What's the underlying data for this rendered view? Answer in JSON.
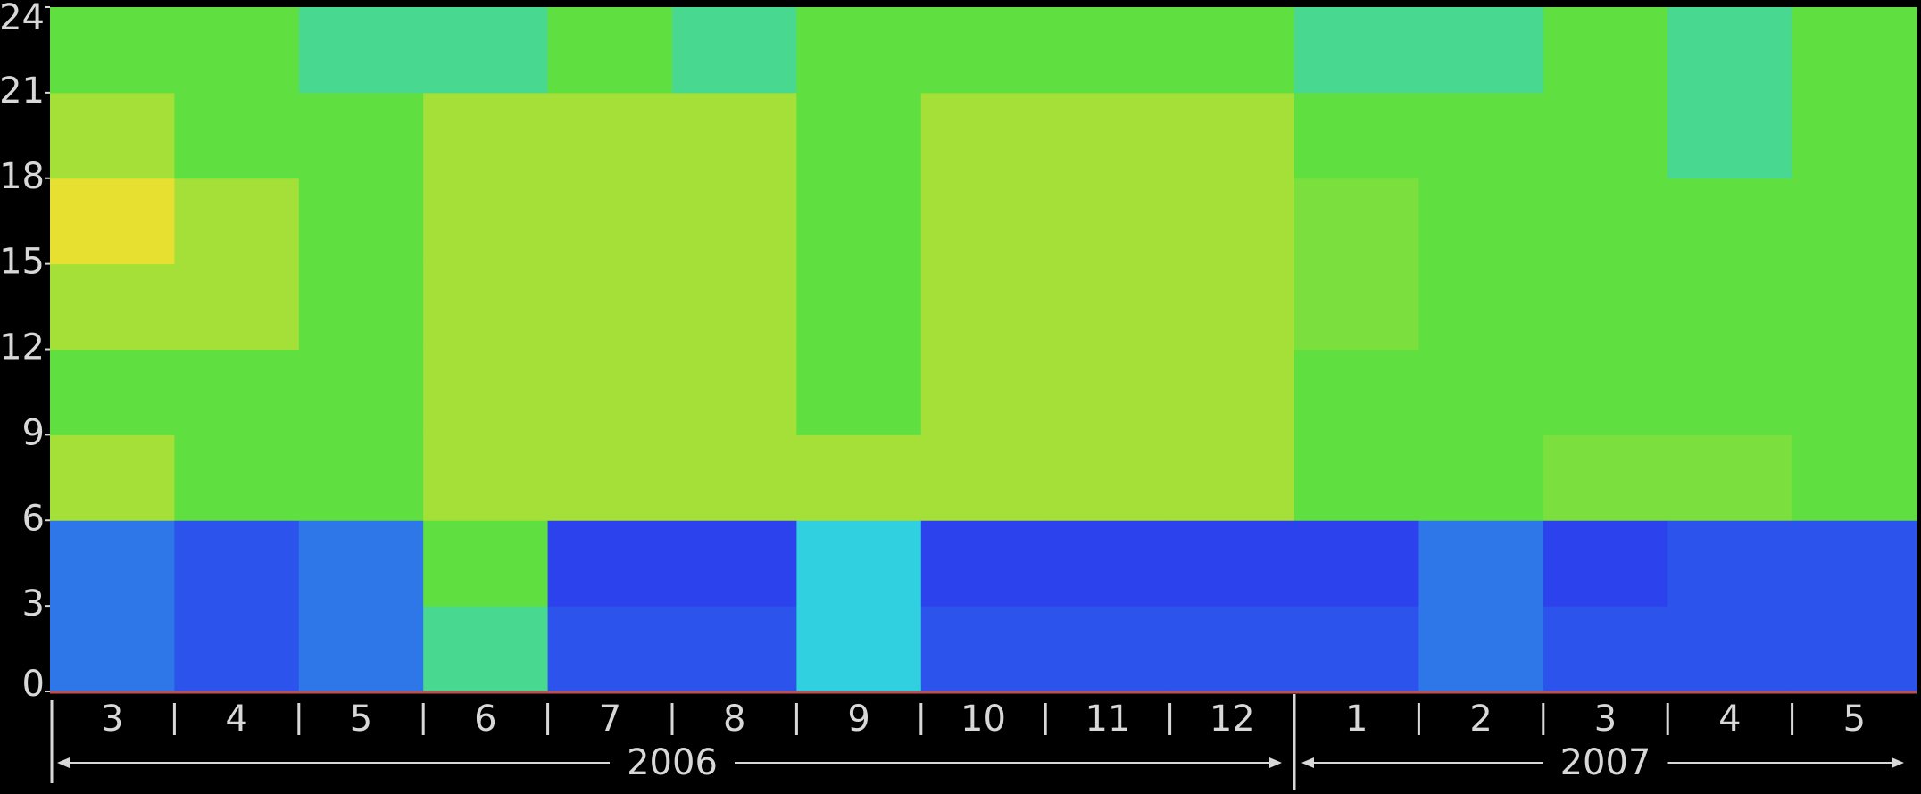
{
  "chart_data": {
    "type": "heatmap",
    "groups": [
      {
        "name": "2006",
        "categories": [
          "3",
          "4",
          "5",
          "6",
          "7",
          "8",
          "9",
          "10",
          "11",
          "12"
        ]
      },
      {
        "name": "2007",
        "categories": [
          "1",
          "2",
          "3",
          "4",
          "5"
        ]
      }
    ],
    "ylim": [
      0,
      24
    ],
    "yticks": [
      0,
      3,
      6,
      9,
      12,
      15,
      18,
      21,
      24
    ],
    "colorscale": [
      "#2a1ef0",
      "#30d0e0",
      "#60e040",
      "#e8e030",
      "#e02020"
    ],
    "values": [
      [
        0.5,
        0.5,
        2.5,
        2,
        2.5,
        3,
        2.5,
        2
      ],
      [
        0.3,
        0.3,
        2,
        2,
        2.5,
        2.5,
        2,
        2
      ],
      [
        0.5,
        0.5,
        2,
        2,
        2,
        2,
        2,
        1.5
      ],
      [
        1.5,
        2,
        2.5,
        2.5,
        2.5,
        2.5,
        2.5,
        1.5
      ],
      [
        0.3,
        0.2,
        2.5,
        2.5,
        2.5,
        2.5,
        2.5,
        2
      ],
      [
        0.3,
        0.2,
        2.5,
        2.5,
        2.5,
        2.5,
        2.5,
        1.5
      ],
      [
        1,
        1,
        2.5,
        2,
        2,
        2,
        2,
        2
      ],
      [
        0.3,
        0.2,
        2.5,
        2.5,
        2.5,
        2.5,
        2.5,
        2
      ],
      [
        0.3,
        0.2,
        2.5,
        2.5,
        2.5,
        2.5,
        2.5,
        2
      ],
      [
        0.3,
        0.2,
        2.5,
        2.5,
        2.5,
        2.5,
        2.5,
        2
      ],
      [
        0.3,
        0.2,
        2,
        2,
        2.2,
        2.2,
        2,
        1.5
      ],
      [
        0.5,
        0.5,
        2,
        2,
        2,
        2,
        2,
        1.5
      ],
      [
        0.3,
        0.2,
        2.2,
        2,
        2,
        2,
        2,
        2
      ],
      [
        0.3,
        0.3,
        2.2,
        2,
        2,
        2,
        1.5,
        1.5
      ],
      [
        0.3,
        0.3,
        2,
        2,
        2,
        2,
        2,
        2
      ]
    ]
  }
}
